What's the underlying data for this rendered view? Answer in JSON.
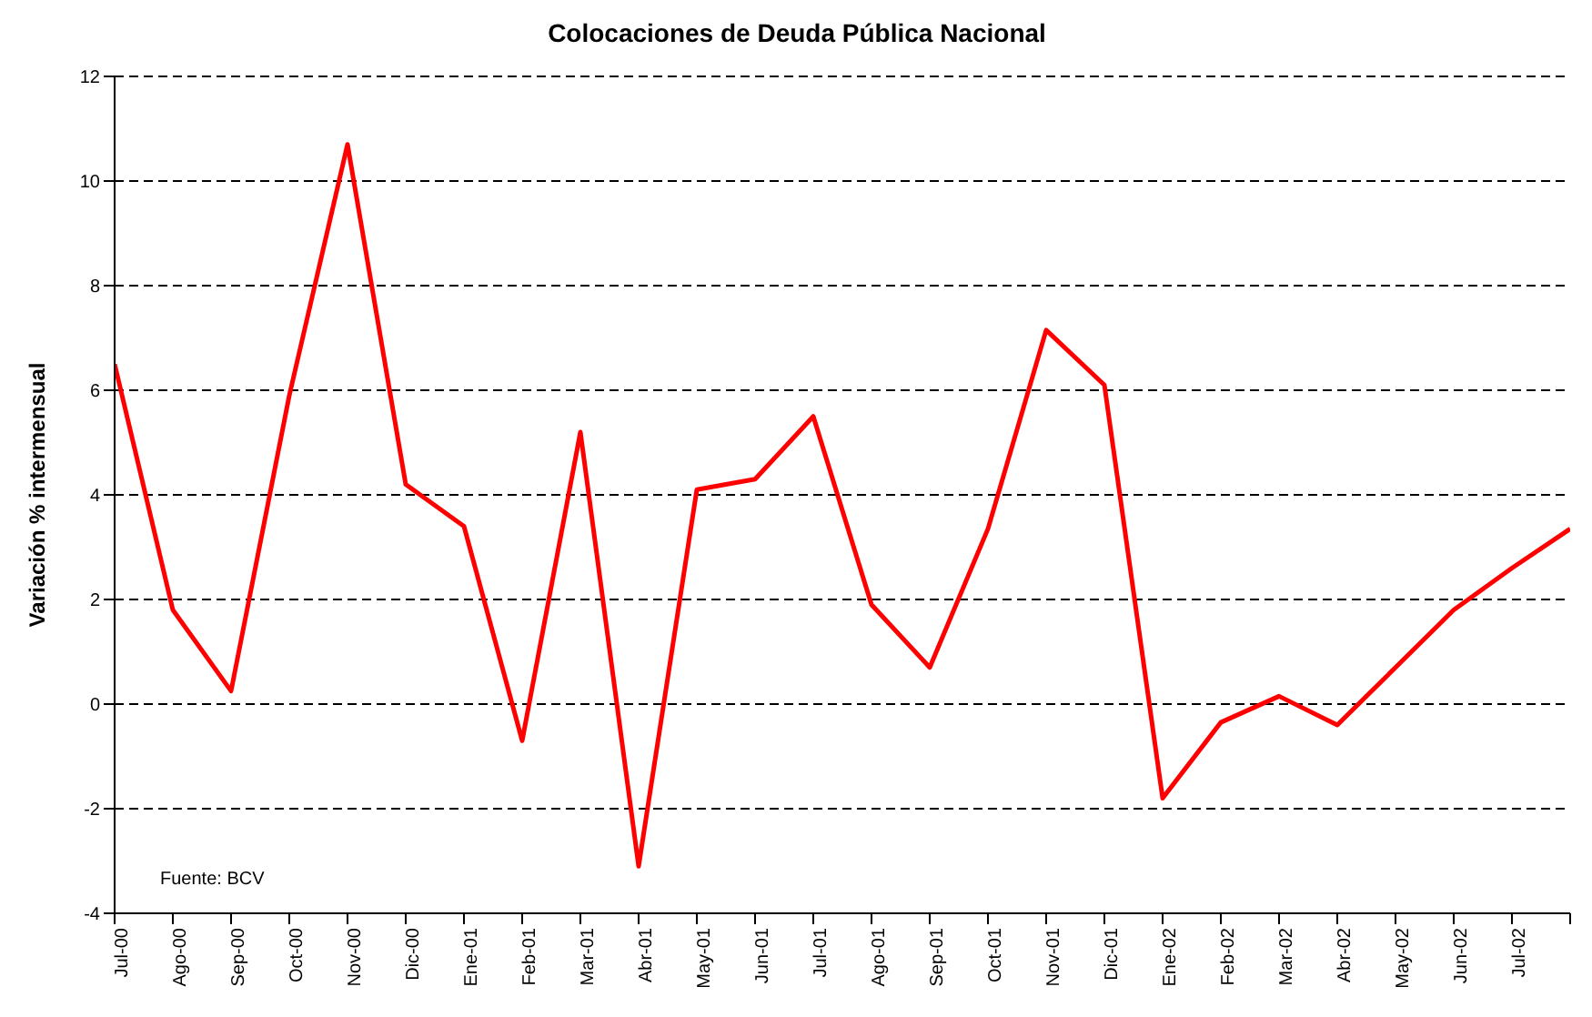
{
  "chart_data": {
    "type": "line",
    "title": "Colocaciones de Deuda Pública Nacional",
    "ylabel": "Variación % intermensual",
    "annotations": [
      "Fuente: BCV"
    ],
    "categories": [
      "Jul-00",
      "Ago-00",
      "Sep-00",
      "Oct-00",
      "Nov-00",
      "Dic-00",
      "Ene-01",
      "Feb-01",
      "Mar-01",
      "Abr-01",
      "May-01",
      "Jun-01",
      "Jul-01",
      "Ago-01",
      "Sep-01",
      "Oct-01",
      "Nov-01",
      "Dic-01",
      "Ene-02",
      "Feb-02",
      "Mar-02",
      "Abr-02",
      "May-02",
      "Jun-02",
      "Jul-02",
      null
    ],
    "series": [
      {
        "color": "#ff0000",
        "values": [
          6.5,
          1.8,
          0.25,
          5.9,
          10.7,
          4.2,
          3.4,
          -0.7,
          5.2,
          -3.1,
          4.1,
          4.3,
          5.5,
          1.9,
          0.7,
          3.35,
          7.15,
          6.1,
          -1.8,
          -0.35,
          0.15,
          -0.4,
          0.7,
          1.8,
          2.6,
          3.35
        ]
      }
    ],
    "ylim": [
      -4,
      12
    ],
    "yticks": [
      -4,
      -2,
      0,
      2,
      4,
      6,
      8,
      10,
      12
    ],
    "grid": "y",
    "marker": "none",
    "line_style": "solid"
  }
}
